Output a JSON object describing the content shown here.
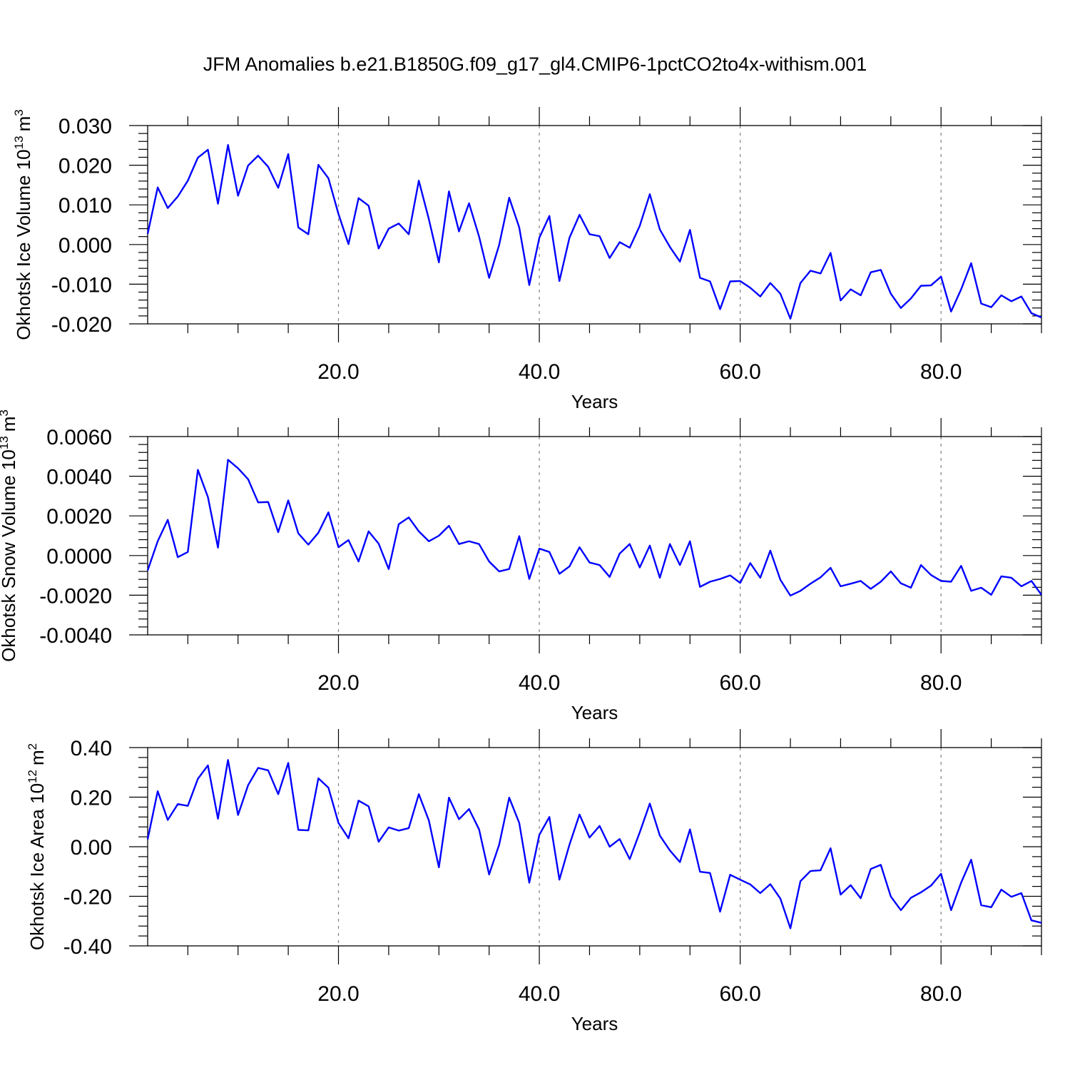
{
  "title": "JFM Anomalies b.e21.B1850G.f09_g17_gl4.CMIP6-1pctCO2to4x-withism.001",
  "chart_data": [
    {
      "type": "line",
      "xlabel": "Years",
      "ylabel_main": "Okhotsk Ice Volume 10",
      "ylabel_exp": "13",
      "ylabel_unit": "m",
      "ylabel_unit_exp": "3",
      "xlim": [
        1,
        90
      ],
      "ylim": [
        -0.02,
        0.03
      ],
      "x_ticks": [
        20,
        40,
        60,
        80
      ],
      "x_tick_labels": [
        "20.0",
        "40.0",
        "60.0",
        "80.0"
      ],
      "y_ticks": [
        0.03,
        0.02,
        0.01,
        0.0,
        -0.01,
        -0.02
      ],
      "y_tick_labels": [
        "0.030",
        "0.020",
        "0.010",
        "0.000",
        "-0.010",
        "-0.020"
      ],
      "grid": "dashed vertical at major x ticks",
      "series": [
        {
          "color": "#0000ff",
          "values": [
            0.0027,
            0.0144,
            0.0092,
            0.0121,
            0.0161,
            0.0219,
            0.0239,
            0.0103,
            0.0251,
            0.0123,
            0.0199,
            0.0224,
            0.0196,
            0.0143,
            0.0228,
            0.0043,
            0.0026,
            0.0201,
            0.0167,
            0.0077,
            0.0001,
            0.0117,
            0.0098,
            -0.001,
            0.004,
            0.0053,
            0.0026,
            0.0161,
            0.0064,
            -0.0045,
            0.0134,
            0.0033,
            0.0104,
            0.002,
            -0.0084,
            -0.0001,
            0.0118,
            0.0043,
            -0.0102,
            0.0017,
            0.0072,
            -0.0092,
            0.0017,
            0.0075,
            0.0026,
            0.0021,
            -0.0034,
            0.0006,
            -0.0008,
            0.0047,
            0.0127,
            0.0038,
            -0.0006,
            -0.0043,
            0.0037,
            -0.0084,
            -0.0093,
            -0.0163,
            -0.0093,
            -0.0092,
            -0.0109,
            -0.0131,
            -0.0097,
            -0.0124,
            -0.0187,
            -0.0097,
            -0.0066,
            -0.0073,
            -0.0021,
            -0.0141,
            -0.0113,
            -0.0128,
            -0.007,
            -0.0064,
            -0.0124,
            -0.016,
            -0.0136,
            -0.0104,
            -0.0103,
            -0.0081,
            -0.0169,
            -0.0113,
            -0.0047,
            -0.0149,
            -0.0158,
            -0.0128,
            -0.0143,
            -0.0131,
            -0.0173,
            -0.0184
          ]
        }
      ]
    },
    {
      "type": "line",
      "xlabel": "Years",
      "ylabel_main": "Okhotsk Snow Volume 10",
      "ylabel_exp": "13",
      "ylabel_unit": "m",
      "ylabel_unit_exp": "3",
      "xlim": [
        1,
        90
      ],
      "ylim": [
        -0.004,
        0.006
      ],
      "x_ticks": [
        20,
        40,
        60,
        80
      ],
      "x_tick_labels": [
        "20.0",
        "40.0",
        "60.0",
        "80.0"
      ],
      "y_ticks": [
        0.006,
        0.004,
        0.002,
        0.0,
        -0.002,
        -0.004
      ],
      "y_tick_labels": [
        "0.0060",
        "0.0040",
        "0.0020",
        "0.0000",
        "-0.0020",
        "-0.0040"
      ],
      "grid": "dashed vertical at major x ticks",
      "series": [
        {
          "color": "#0000ff",
          "values": [
            -0.00075,
            0.00072,
            0.0018,
            -8e-05,
            0.00018,
            0.00432,
            0.00295,
            0.0004,
            0.00483,
            0.0044,
            0.00385,
            0.00268,
            0.0027,
            0.00118,
            0.00278,
            0.00112,
            0.00055,
            0.00115,
            0.00218,
            0.00042,
            0.00078,
            -0.0003,
            0.00122,
            0.0006,
            -0.00068,
            0.00158,
            0.00192,
            0.00122,
            0.00072,
            0.001,
            0.0015,
            0.00058,
            0.00072,
            0.00058,
            -0.0003,
            -0.0008,
            -0.00068,
            0.00098,
            -0.00118,
            0.00035,
            0.00018,
            -0.00092,
            -0.00055,
            0.00042,
            -0.00035,
            -0.00048,
            -0.00108,
            0.0001,
            0.00058,
            -0.0006,
            0.0005,
            -0.00112,
            0.00058,
            -0.00048,
            0.00072,
            -0.00158,
            -0.00132,
            -0.00118,
            -0.001,
            -0.00138,
            -0.00038,
            -0.00112,
            0.00025,
            -0.00122,
            -0.00202,
            -0.00178,
            -0.00142,
            -0.0011,
            -0.00062,
            -0.00155,
            -0.00142,
            -0.00128,
            -0.00168,
            -0.00132,
            -0.0008,
            -0.0014,
            -0.00162,
            -0.00048,
            -0.00098,
            -0.00128,
            -0.00132,
            -0.00052,
            -0.00178,
            -0.00162,
            -0.00198,
            -0.00105,
            -0.00112,
            -0.00155,
            -0.00128,
            -0.00198
          ]
        }
      ]
    },
    {
      "type": "line",
      "xlabel": "Years",
      "ylabel_main": "Okhotsk Ice Area 10",
      "ylabel_exp": "12",
      "ylabel_unit": "m",
      "ylabel_unit_exp": "2",
      "xlim": [
        1,
        90
      ],
      "ylim": [
        -0.4,
        0.4
      ],
      "x_ticks": [
        20,
        40,
        60,
        80
      ],
      "x_tick_labels": [
        "20.0",
        "40.0",
        "60.0",
        "80.0"
      ],
      "y_ticks": [
        0.4,
        0.2,
        0.0,
        -0.2,
        -0.4
      ],
      "y_tick_labels": [
        "0.40",
        "0.20",
        "0.00",
        "-0.20",
        "-0.40"
      ],
      "grid": "dashed vertical at major x ticks",
      "series": [
        {
          "color": "#0000ff",
          "values": [
            0.03,
            0.224,
            0.108,
            0.172,
            0.165,
            0.274,
            0.328,
            0.113,
            0.35,
            0.128,
            0.248,
            0.318,
            0.308,
            0.212,
            0.338,
            0.068,
            0.066,
            0.276,
            0.238,
            0.096,
            0.034,
            0.186,
            0.163,
            0.02,
            0.078,
            0.065,
            0.075,
            0.212,
            0.106,
            -0.083,
            0.198,
            0.111,
            0.152,
            0.07,
            -0.112,
            0.008,
            0.198,
            0.096,
            -0.145,
            0.048,
            0.12,
            -0.133,
            0.008,
            0.13,
            0.037,
            0.084,
            0.0,
            0.031,
            -0.05,
            0.058,
            0.174,
            0.045,
            -0.015,
            -0.062,
            0.07,
            -0.101,
            -0.106,
            -0.262,
            -0.113,
            -0.133,
            -0.152,
            -0.187,
            -0.151,
            -0.209,
            -0.329,
            -0.139,
            -0.098,
            -0.095,
            -0.006,
            -0.193,
            -0.155,
            -0.208,
            -0.09,
            -0.073,
            -0.201,
            -0.256,
            -0.206,
            -0.184,
            -0.157,
            -0.109,
            -0.256,
            -0.145,
            -0.052,
            -0.236,
            -0.244,
            -0.173,
            -0.202,
            -0.187,
            -0.297,
            -0.307
          ]
        }
      ]
    }
  ]
}
